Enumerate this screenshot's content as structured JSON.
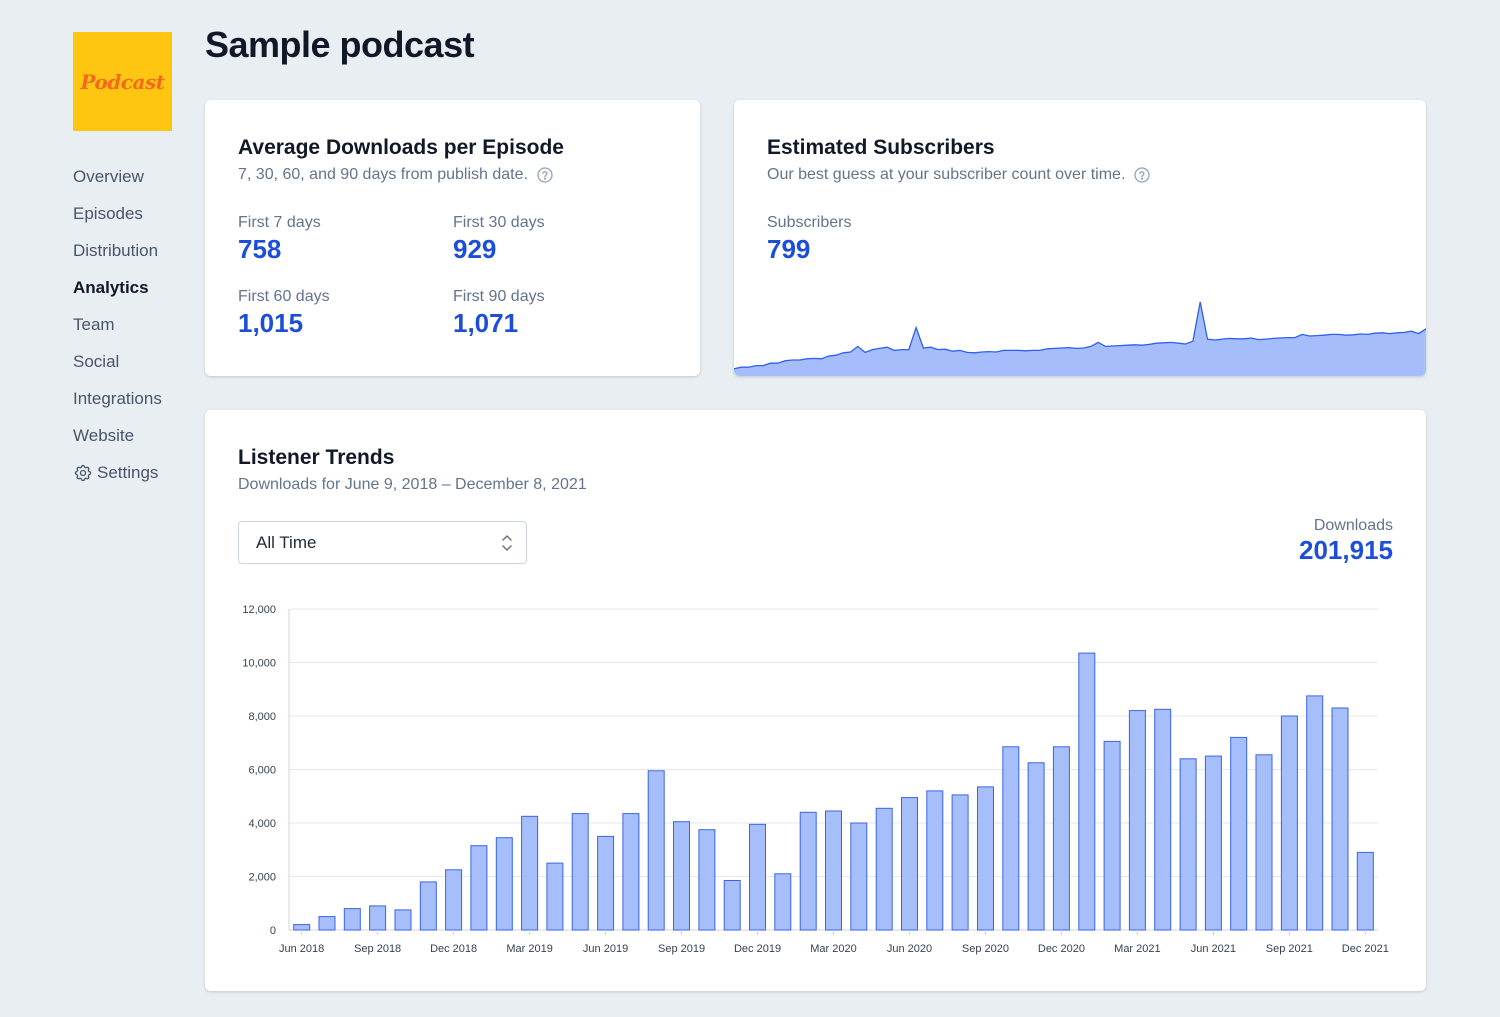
{
  "app": {
    "logo_text": "Podcast",
    "page_title": "Sample podcast"
  },
  "sidebar": {
    "items": [
      {
        "label": "Overview",
        "active": false
      },
      {
        "label": "Episodes",
        "active": false
      },
      {
        "label": "Distribution",
        "active": false
      },
      {
        "label": "Analytics",
        "active": true
      },
      {
        "label": "Team",
        "active": false
      },
      {
        "label": "Social",
        "active": false
      },
      {
        "label": "Integrations",
        "active": false
      },
      {
        "label": "Website",
        "active": false
      },
      {
        "label": "Settings",
        "active": false,
        "icon": "gear-icon"
      }
    ]
  },
  "avg_downloads": {
    "title": "Average Downloads per Episode",
    "subtitle": "7, 30, 60, and 90 days from publish date.",
    "help_icon": "question-circle-icon",
    "stats": [
      {
        "label": "First 7 days",
        "value": "758"
      },
      {
        "label": "First 30 days",
        "value": "929"
      },
      {
        "label": "First 60 days",
        "value": "1,015"
      },
      {
        "label": "First 90 days",
        "value": "1,071"
      }
    ]
  },
  "subscribers": {
    "title": "Estimated Subscribers",
    "subtitle": "Our best guess at your subscriber count over time.",
    "help_icon": "question-circle-icon",
    "label": "Subscribers",
    "value": "799",
    "sparkline_fill": "#a5bdfb",
    "sparkline_stroke": "#2f5ff0"
  },
  "trends": {
    "title": "Listener Trends",
    "subtitle": "Downloads for June 9, 2018 – December 8, 2021",
    "range_select": {
      "value": "All Time",
      "icon": "up-down-chevron-icon"
    },
    "downloads_label": "Downloads",
    "downloads_value": "201,915"
  },
  "colors": {
    "accent": "#1d4ed8",
    "bar_fill": "#a6bffb",
    "bar_stroke": "#3b63e6",
    "logo_bg": "#ffc611",
    "logo_text": "#f26b1d"
  },
  "chart_data": [
    {
      "type": "area",
      "title": "",
      "series": [
        {
          "values": [
            90,
            110,
            110,
            130,
            130,
            160,
            160,
            190,
            200,
            200,
            215,
            220,
            215,
            250,
            260,
            290,
            300,
            370,
            295,
            330,
            345,
            360,
            320,
            330,
            330,
            605,
            350,
            360,
            330,
            335,
            310,
            320,
            295,
            290,
            300,
            305,
            300,
            320,
            320,
            320,
            315,
            320,
            320,
            340,
            345,
            350,
            355,
            345,
            350,
            370,
            420,
            370,
            375,
            380,
            385,
            390,
            385,
            395,
            410,
            415,
            420,
            410,
            400,
            435,
            925,
            460,
            450,
            460,
            470,
            465,
            465,
            475,
            455,
            460,
            470,
            475,
            480,
            480,
            520,
            500,
            505,
            510,
            520,
            520,
            510,
            515,
            525,
            520,
            535,
            540,
            530,
            540,
            545,
            560,
            530,
            590
          ]
        }
      ],
      "ylim": [
        0,
        1000
      ]
    },
    {
      "type": "bar",
      "title": "",
      "categories": [
        "Jun 2018",
        "Jul 2018",
        "Aug 2018",
        "Sep 2018",
        "Oct 2018",
        "Nov 2018",
        "Dec 2018",
        "Jan 2019",
        "Feb 2019",
        "Mar 2019",
        "Apr 2019",
        "May 2019",
        "Jun 2019",
        "Jul 2019",
        "Aug 2019",
        "Sep 2019",
        "Oct 2019",
        "Nov 2019",
        "Dec 2019",
        "Jan 2020",
        "Feb 2020",
        "Mar 2020",
        "Apr 2020",
        "May 2020",
        "Jun 2020",
        "Jul 2020",
        "Aug 2020",
        "Sep 2020",
        "Oct 2020",
        "Nov 2020",
        "Dec 2020",
        "Jan 2021",
        "Feb 2021",
        "Mar 2021",
        "Apr 2021",
        "May 2021",
        "Jun 2021",
        "Jul 2021",
        "Aug 2021",
        "Sep 2021",
        "Oct 2021",
        "Nov 2021",
        "Dec 2021"
      ],
      "x_tick_labels": [
        "Jun 2018",
        "Sep 2018",
        "Dec 2018",
        "Mar 2019",
        "Jun 2019",
        "Sep 2019",
        "Dec 2019",
        "Mar 2020",
        "Jun 2020",
        "Sep 2020",
        "Dec 2020",
        "Mar 2021",
        "Jun 2021",
        "Sep 2021",
        "Dec 2021"
      ],
      "series": [
        {
          "values": [
            200,
            500,
            800,
            900,
            750,
            1800,
            2250,
            3150,
            3450,
            4250,
            2500,
            4350,
            3500,
            4350,
            5950,
            4050,
            3750,
            1850,
            3950,
            2100,
            4400,
            4450,
            4000,
            4550,
            4950,
            5200,
            5050,
            5350,
            6850,
            6250,
            6850,
            10350,
            7050,
            8200,
            8250,
            6400,
            6500,
            7200,
            6550,
            8000,
            8750,
            8300,
            2900
          ]
        }
      ],
      "y_ticks": [
        0,
        2000,
        4000,
        6000,
        8000,
        10000,
        12000
      ],
      "y_tick_labels": [
        "0",
        "2,000",
        "4,000",
        "6,000",
        "8,000",
        "10,000",
        "12,000"
      ],
      "ylim": [
        0,
        12000
      ],
      "grid": true,
      "xlabel": "",
      "ylabel": ""
    }
  ]
}
